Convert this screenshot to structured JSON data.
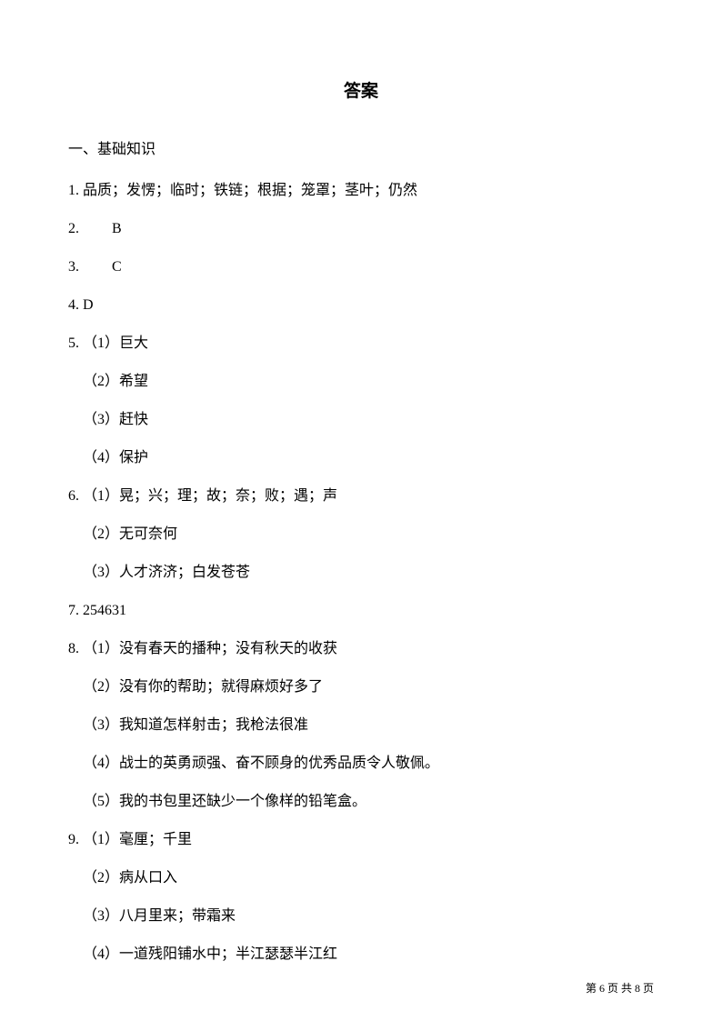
{
  "title": "答案",
  "section": "一、基础知识",
  "answers": {
    "a1": "1. 品质；发愣；临时；铁链；根据；笼罩；茎叶；仍然",
    "a2": "2. 　　B",
    "a3": "3. 　　C",
    "a4": "4. D",
    "a5": "5. （1）巨大",
    "a5_2": "（2）希望",
    "a5_3": "（3）赶快",
    "a5_4": "（4）保护",
    "a6": "6. （1）晃；兴；理；故；奈；败；遇；声",
    "a6_2": "（2）无可奈何",
    "a6_3": "（3）人才济济；白发苍苍",
    "a7": "7. 254631",
    "a8": "8. （1）没有春天的播种；没有秋天的收获",
    "a8_2": "（2）没有你的帮助；就得麻烦好多了",
    "a8_3": "（3）我知道怎样射击；我枪法很准",
    "a8_4": "（4）战士的英勇顽强、奋不顾身的优秀品质令人敬佩。",
    "a8_5": "（5）我的书包里还缺少一个像样的铅笔盒。",
    "a9": "9. （1）毫厘；千里",
    "a9_2": "（2）病从口入",
    "a9_3": "（3）八月里来；带霜来",
    "a9_4": "（4）一道残阳铺水中；半江瑟瑟半江红"
  },
  "footer": "第 6 页 共 8 页"
}
